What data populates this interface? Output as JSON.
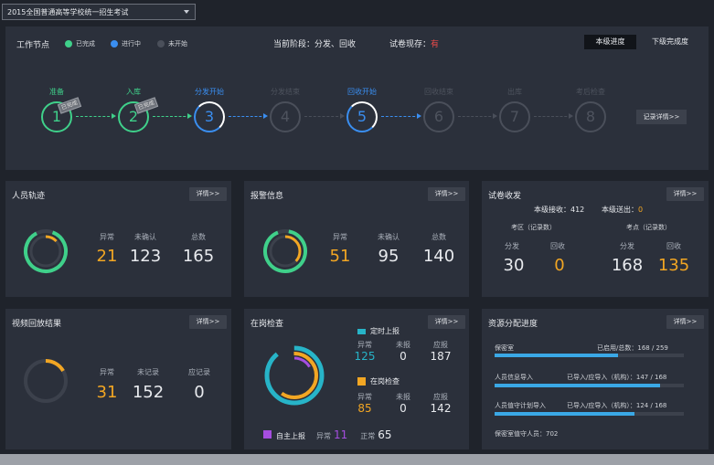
{
  "exam_select": {
    "value": "2015全国普通高等学校统一招生考试"
  },
  "workflow": {
    "title": "工作节点",
    "legend": [
      {
        "label": "已完成",
        "color": "#3fd08a"
      },
      {
        "label": "进行中",
        "color": "#3a8ef0"
      },
      {
        "label": "未开始",
        "color": "#4a4f5a"
      }
    ],
    "current_stage_label": "当前阶段：分发、回收",
    "paper_storage_label": "试卷现存：",
    "paper_storage_value": "有",
    "tab_this_level": "本级进度",
    "tab_lower_level": "下级完成度",
    "record_detail_btn": "记录详情>>",
    "steps": [
      {
        "num": "1",
        "label": "准备",
        "state": "done",
        "stamp": "已完成"
      },
      {
        "num": "2",
        "label": "入库",
        "state": "done",
        "stamp": "已完成"
      },
      {
        "num": "3",
        "label": "分发开始",
        "state": "active"
      },
      {
        "num": "4",
        "label": "分发结束",
        "state": "todo"
      },
      {
        "num": "5",
        "label": "回收开始",
        "state": "active"
      },
      {
        "num": "6",
        "label": "回收结束",
        "state": "todo"
      },
      {
        "num": "7",
        "label": "出库",
        "state": "todo"
      },
      {
        "num": "8",
        "label": "考后检查",
        "state": "todo"
      }
    ]
  },
  "personnel": {
    "title": "人员轨迹",
    "detail": "详情>>",
    "labels": [
      "异常",
      "未确认",
      "总数"
    ],
    "values": [
      "21",
      "123",
      "165"
    ]
  },
  "alarm": {
    "title": "报警信息",
    "detail": "详情>>",
    "labels": [
      "异常",
      "未确认",
      "总数"
    ],
    "values": [
      "51",
      "95",
      "140"
    ]
  },
  "paper": {
    "title": "试卷收发",
    "detail": "详情>>",
    "received_label": "本级接收：412",
    "out_label": "本级送出：",
    "out_value": "0",
    "region_title": "考区（记录数）",
    "site_title": "考点（记录数）",
    "col_labels": [
      "分发",
      "回收",
      "分发",
      "回收"
    ],
    "values": [
      "30",
      "0",
      "168",
      "135"
    ]
  },
  "video": {
    "title": "视频回放结果",
    "detail": "详情>>",
    "labels": [
      "异常",
      "未记录",
      "应记录"
    ],
    "values": [
      "31",
      "152",
      "0"
    ]
  },
  "inspection": {
    "title": "在岗检查",
    "detail": "详情>>",
    "timed": {
      "title": "定时上报",
      "labels": [
        "异常",
        "未报",
        "应报"
      ],
      "values": [
        "125",
        "0",
        "187"
      ],
      "color": "#27b4c8"
    },
    "onsite": {
      "title": "在岗检查",
      "labels": [
        "异常",
        "未报",
        "应报"
      ],
      "values": [
        "85",
        "0",
        "142"
      ],
      "color": "#f2a623"
    },
    "self": {
      "title": "自主上报",
      "abnormal_label": "异常",
      "abnormal_value": "11",
      "normal_label": "正常",
      "normal_value": "65",
      "color": "#a64ee0"
    }
  },
  "resource": {
    "title": "资源分配进度",
    "detail": "详情>>",
    "bars": [
      {
        "label": "保密室",
        "ratio_label": "已启用/总数：",
        "ratio": "168 / 259",
        "fraction": 0.65
      },
      {
        "label": "人员信息导入",
        "ratio_label": "已导入/应导入（机构）：",
        "ratio": "147 / 168",
        "fraction": 0.875
      },
      {
        "label": "人员值守计划导入",
        "ratio_label": "已导入/应导入（机构）：",
        "ratio": "124 / 168",
        "fraction": 0.74
      }
    ],
    "footer": "保密室值守人员：702"
  }
}
